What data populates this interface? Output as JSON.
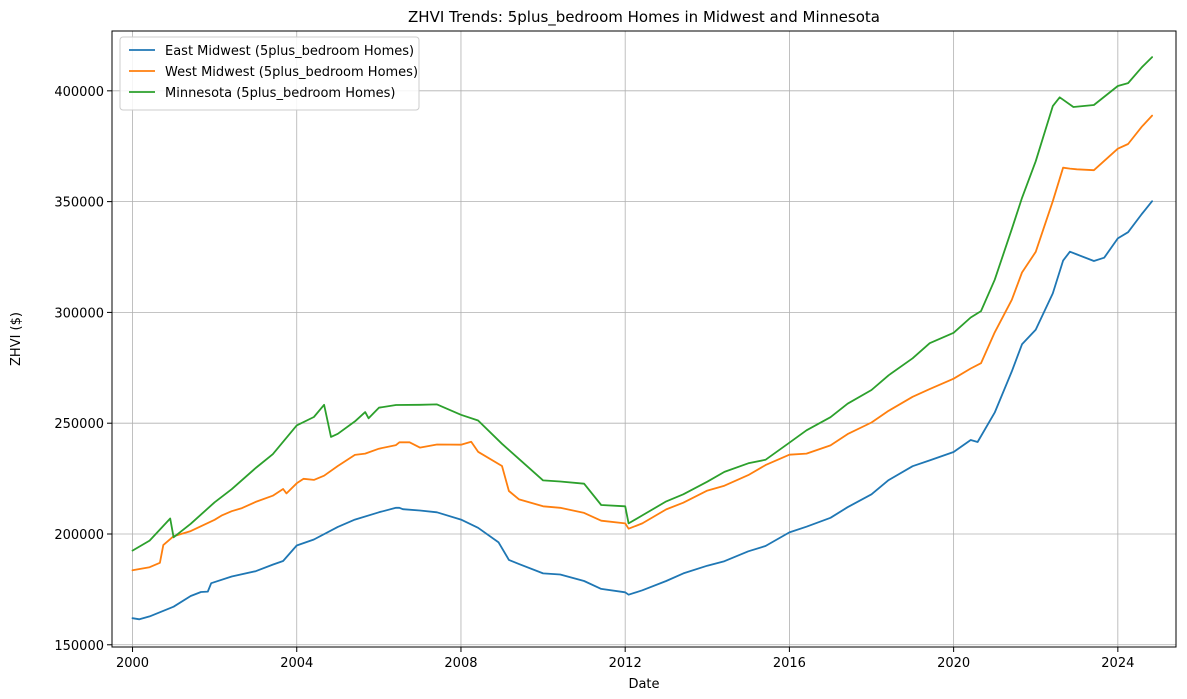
{
  "chart_data": {
    "type": "line",
    "title": "ZHVI Trends: 5plus_bedroom Homes in Midwest and Minnesota",
    "xlabel": "Date",
    "ylabel": "ZHVI ($)",
    "xlim": [
      "1999-07-01",
      "2025-06-01"
    ],
    "ylim": [
      149000,
      427000
    ],
    "x_ticks": [
      "2000",
      "2004",
      "2008",
      "2012",
      "2016",
      "2020",
      "2024"
    ],
    "y_ticks": [
      "150000",
      "200000",
      "250000",
      "300000",
      "350000",
      "400000"
    ],
    "grid": true,
    "legend_position": "upper-left",
    "series": [
      {
        "name": "East Midwest (5plus_bedroom Homes)",
        "color": "#1f77b4",
        "points": [
          [
            "2000-01",
            162000
          ],
          [
            "2000-03",
            161500
          ],
          [
            "2000-06",
            162800
          ],
          [
            "2001-01",
            167200
          ],
          [
            "2001-06",
            172000
          ],
          [
            "2001-09",
            173800
          ],
          [
            "2001-11",
            174000
          ],
          [
            "2001-12",
            177800
          ],
          [
            "2002-06",
            180800
          ],
          [
            "2003-01",
            183200
          ],
          [
            "2003-06",
            186200
          ],
          [
            "2003-09",
            187800
          ],
          [
            "2004-01",
            194800
          ],
          [
            "2004-06",
            197500
          ],
          [
            "2005-01",
            203200
          ],
          [
            "2005-06",
            206500
          ],
          [
            "2006-01",
            209800
          ],
          [
            "2006-06",
            211800
          ],
          [
            "2006-07",
            211800
          ],
          [
            "2006-08",
            211200
          ],
          [
            "2007-01",
            210600
          ],
          [
            "2007-06",
            209800
          ],
          [
            "2008-01",
            206500
          ],
          [
            "2008-06",
            202800
          ],
          [
            "2008-12",
            196200
          ],
          [
            "2009-03",
            188300
          ],
          [
            "2009-06",
            186400
          ],
          [
            "2010-01",
            182200
          ],
          [
            "2010-06",
            181700
          ],
          [
            "2011-01",
            178800
          ],
          [
            "2011-06",
            175200
          ],
          [
            "2012-01",
            173700
          ],
          [
            "2012-02",
            172600
          ],
          [
            "2012-06",
            174600
          ],
          [
            "2013-01",
            178800
          ],
          [
            "2013-06",
            182200
          ],
          [
            "2014-01",
            185700
          ],
          [
            "2014-06",
            187700
          ],
          [
            "2015-01",
            192200
          ],
          [
            "2015-06",
            194600
          ],
          [
            "2016-01",
            200700
          ],
          [
            "2016-06",
            203300
          ],
          [
            "2017-01",
            207300
          ],
          [
            "2017-06",
            212100
          ],
          [
            "2018-01",
            217900
          ],
          [
            "2018-06",
            224300
          ],
          [
            "2019-01",
            230600
          ],
          [
            "2019-06",
            233200
          ],
          [
            "2020-01",
            237000
          ],
          [
            "2020-06",
            242400
          ],
          [
            "2020-08",
            241500
          ],
          [
            "2021-01",
            254800
          ],
          [
            "2021-06",
            273400
          ],
          [
            "2021-09",
            285600
          ],
          [
            "2022-01",
            292200
          ],
          [
            "2022-06",
            308600
          ],
          [
            "2022-09",
            323400
          ],
          [
            "2022-11",
            327400
          ],
          [
            "2023-01",
            326200
          ],
          [
            "2023-06",
            323200
          ],
          [
            "2023-09",
            324700
          ],
          [
            "2024-01",
            333400
          ],
          [
            "2024-04",
            336200
          ],
          [
            "2024-08",
            344400
          ],
          [
            "2024-11",
            350200
          ]
        ]
      },
      {
        "name": "West Midwest (5plus_bedroom Homes)",
        "color": "#ff7f0e",
        "points": [
          [
            "2000-01",
            183600
          ],
          [
            "2000-06",
            185000
          ],
          [
            "2000-09",
            187000
          ],
          [
            "2000-10",
            195000
          ],
          [
            "2001-01",
            199000
          ],
          [
            "2001-06",
            201300
          ],
          [
            "2002-01",
            206400
          ],
          [
            "2002-03",
            208300
          ],
          [
            "2002-06",
            210300
          ],
          [
            "2002-09",
            211700
          ],
          [
            "2003-01",
            214500
          ],
          [
            "2003-06",
            217300
          ],
          [
            "2003-09",
            220300
          ],
          [
            "2003-10",
            218300
          ],
          [
            "2004-01",
            222900
          ],
          [
            "2004-03",
            224900
          ],
          [
            "2004-06",
            224400
          ],
          [
            "2004-09",
            226300
          ],
          [
            "2005-01",
            230700
          ],
          [
            "2005-06",
            235700
          ],
          [
            "2005-09",
            236300
          ],
          [
            "2006-01",
            238500
          ],
          [
            "2006-06",
            240100
          ],
          [
            "2006-07",
            241400
          ],
          [
            "2006-10",
            241400
          ],
          [
            "2007-01",
            239000
          ],
          [
            "2007-06",
            240400
          ],
          [
            "2008-01",
            240300
          ],
          [
            "2008-04",
            241600
          ],
          [
            "2008-06",
            237100
          ],
          [
            "2009-01",
            230700
          ],
          [
            "2009-03",
            219400
          ],
          [
            "2009-06",
            215600
          ],
          [
            "2010-01",
            212500
          ],
          [
            "2010-06",
            211800
          ],
          [
            "2011-01",
            209500
          ],
          [
            "2011-06",
            206000
          ],
          [
            "2012-01",
            204800
          ],
          [
            "2012-02",
            202400
          ],
          [
            "2012-06",
            204800
          ],
          [
            "2013-01",
            211100
          ],
          [
            "2013-06",
            214100
          ],
          [
            "2014-01",
            219600
          ],
          [
            "2014-06",
            221800
          ],
          [
            "2015-01",
            226600
          ],
          [
            "2015-06",
            231100
          ],
          [
            "2016-01",
            235800
          ],
          [
            "2016-06",
            236300
          ],
          [
            "2017-01",
            240000
          ],
          [
            "2017-06",
            245100
          ],
          [
            "2018-01",
            250300
          ],
          [
            "2018-06",
            255600
          ],
          [
            "2019-01",
            261900
          ],
          [
            "2019-06",
            265400
          ],
          [
            "2020-01",
            270100
          ],
          [
            "2020-06",
            274700
          ],
          [
            "2020-09",
            277100
          ],
          [
            "2021-01",
            291000
          ],
          [
            "2021-06",
            305700
          ],
          [
            "2021-09",
            318000
          ],
          [
            "2022-01",
            327300
          ],
          [
            "2022-06",
            350200
          ],
          [
            "2022-09",
            365300
          ],
          [
            "2022-11",
            364900
          ],
          [
            "2023-01",
            364600
          ],
          [
            "2023-06",
            364200
          ],
          [
            "2024-01",
            373900
          ],
          [
            "2024-04",
            376000
          ],
          [
            "2024-08",
            383800
          ],
          [
            "2024-11",
            388800
          ]
        ]
      },
      {
        "name": "Minnesota (5plus_bedroom Homes)",
        "color": "#2ca02c",
        "points": [
          [
            "2000-01",
            192500
          ],
          [
            "2000-06",
            197000
          ],
          [
            "2000-12",
            207000
          ],
          [
            "2001-01",
            198500
          ],
          [
            "2001-06",
            204600
          ],
          [
            "2002-01",
            214300
          ],
          [
            "2002-06",
            220200
          ],
          [
            "2003-01",
            229800
          ],
          [
            "2003-06",
            236000
          ],
          [
            "2004-01",
            249000
          ],
          [
            "2004-06",
            252800
          ],
          [
            "2004-09",
            258300
          ],
          [
            "2004-11",
            243800
          ],
          [
            "2005-01",
            245200
          ],
          [
            "2005-06",
            250800
          ],
          [
            "2005-09",
            255000
          ],
          [
            "2005-10",
            252200
          ],
          [
            "2006-01",
            257000
          ],
          [
            "2006-06",
            258200
          ],
          [
            "2007-01",
            258300
          ],
          [
            "2007-06",
            258500
          ],
          [
            "2008-01",
            253800
          ],
          [
            "2008-06",
            251200
          ],
          [
            "2009-01",
            240700
          ],
          [
            "2009-06",
            233800
          ],
          [
            "2010-01",
            224200
          ],
          [
            "2010-06",
            223700
          ],
          [
            "2011-01",
            222700
          ],
          [
            "2011-06",
            213100
          ],
          [
            "2012-01",
            212500
          ],
          [
            "2012-02",
            204800
          ],
          [
            "2012-06",
            208400
          ],
          [
            "2013-01",
            214700
          ],
          [
            "2013-06",
            217900
          ],
          [
            "2014-01",
            223600
          ],
          [
            "2014-06",
            228000
          ],
          [
            "2015-01",
            231900
          ],
          [
            "2015-06",
            233500
          ],
          [
            "2016-01",
            241200
          ],
          [
            "2016-06",
            246800
          ],
          [
            "2017-01",
            252700
          ],
          [
            "2017-06",
            258800
          ],
          [
            "2018-01",
            265000
          ],
          [
            "2018-06",
            271600
          ],
          [
            "2019-01",
            279300
          ],
          [
            "2019-06",
            286100
          ],
          [
            "2020-01",
            290800
          ],
          [
            "2020-06",
            297700
          ],
          [
            "2020-09",
            300600
          ],
          [
            "2021-01",
            314700
          ],
          [
            "2021-06",
            337600
          ],
          [
            "2021-09",
            351700
          ],
          [
            "2022-01",
            368200
          ],
          [
            "2022-06",
            393100
          ],
          [
            "2022-08",
            397100
          ],
          [
            "2022-12",
            392700
          ],
          [
            "2023-06",
            393600
          ],
          [
            "2024-01",
            402200
          ],
          [
            "2024-04",
            403500
          ],
          [
            "2024-08",
            410600
          ],
          [
            "2024-11",
            415200
          ]
        ]
      }
    ]
  }
}
